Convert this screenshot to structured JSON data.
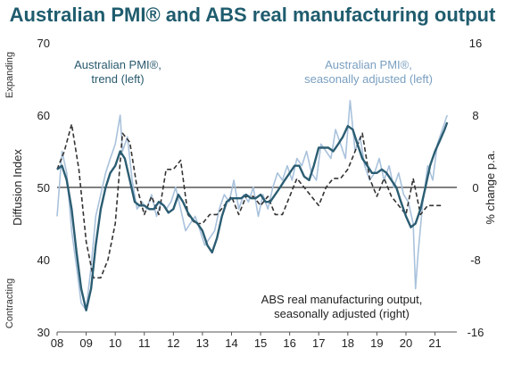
{
  "chart_data": {
    "type": "line",
    "title": "Australian PMI® and ABS real manufacturing output",
    "ylabel_left": "Diffusion Index",
    "ylabel_right": "% change p.a.",
    "side_label_top": "Expanding",
    "side_label_bottom": "Contracting",
    "x_ticks": [
      "08",
      "09",
      "10",
      "11",
      "12",
      "13",
      "14",
      "15",
      "16",
      "17",
      "18",
      "19",
      "20",
      "21"
    ],
    "xlim": [
      2008.0,
      2021.75
    ],
    "ylim_left": [
      30,
      70
    ],
    "ylim_right": [
      -16,
      16
    ],
    "yticks_left": [
      "30",
      "40",
      "50",
      "60",
      "70"
    ],
    "yticks_right": [
      "-16",
      "-8",
      "0",
      "8",
      "16"
    ],
    "reference_line_left": 50,
    "annotations": {
      "trend": [
        "Australian PMI®,",
        "trend (left)"
      ],
      "seasonal": [
        "Australian PMI®,",
        "seasonally adjusted (left)"
      ],
      "abs": [
        "ABS real manufacturing output,",
        "seasonally adjusted (right)"
      ]
    },
    "colors": {
      "seasonal": "#a9c2dc",
      "trend": "#2b5d72",
      "abs": "#333333",
      "title": "#1f5c6e"
    },
    "series": [
      {
        "name": "Australian PMI®, seasonally adjusted (left)",
        "axis": "left",
        "style": "solid-light",
        "x": [
          2008.0,
          2008.17,
          2008.33,
          2008.5,
          2008.67,
          2008.83,
          2009.0,
          2009.08,
          2009.17,
          2009.33,
          2009.5,
          2009.67,
          2009.83,
          2010.0,
          2010.17,
          2010.25,
          2010.42,
          2010.58,
          2010.75,
          2010.92,
          2011.08,
          2011.25,
          2011.42,
          2011.58,
          2011.75,
          2011.92,
          2012.08,
          2012.25,
          2012.42,
          2012.58,
          2012.75,
          2012.92,
          2013.08,
          2013.25,
          2013.42,
          2013.58,
          2013.75,
          2013.92,
          2014.08,
          2014.25,
          2014.42,
          2014.58,
          2014.75,
          2014.92,
          2015.08,
          2015.25,
          2015.42,
          2015.58,
          2015.75,
          2015.92,
          2016.08,
          2016.25,
          2016.42,
          2016.58,
          2016.75,
          2016.92,
          2017.08,
          2017.25,
          2017.42,
          2017.58,
          2017.75,
          2017.92,
          2018.0,
          2018.08,
          2018.25,
          2018.42,
          2018.58,
          2018.75,
          2018.92,
          2019.08,
          2019.25,
          2019.42,
          2019.58,
          2019.75,
          2019.92,
          2020.08,
          2020.25,
          2020.33,
          2020.42,
          2020.58,
          2020.75,
          2020.92,
          2021.08,
          2021.25,
          2021.42
        ],
        "values": [
          46,
          55,
          52,
          44,
          39,
          34,
          33,
          36,
          39,
          46,
          49,
          52,
          54,
          56,
          60,
          55,
          57,
          51,
          47,
          48,
          47,
          49,
          46,
          48,
          47,
          48,
          50,
          47,
          44,
          45,
          46,
          44,
          42,
          43,
          44,
          47,
          49,
          48,
          51,
          47,
          49,
          48,
          50,
          46,
          49,
          47,
          50,
          52,
          51,
          53,
          51,
          54,
          53,
          55,
          52,
          51,
          56,
          55,
          54,
          58,
          56,
          54,
          58,
          62,
          55,
          57,
          53,
          51,
          52,
          54,
          51,
          53,
          50,
          52,
          49,
          48,
          45,
          36,
          41,
          48,
          53,
          51,
          56,
          58,
          60
        ]
      },
      {
        "name": "Australian PMI®, trend (left)",
        "axis": "left",
        "style": "solid-dark",
        "x": [
          2008.0,
          2008.17,
          2008.33,
          2008.5,
          2008.67,
          2008.83,
          2009.0,
          2009.17,
          2009.33,
          2009.5,
          2009.67,
          2009.83,
          2010.0,
          2010.17,
          2010.33,
          2010.5,
          2010.67,
          2010.83,
          2011.0,
          2011.17,
          2011.33,
          2011.5,
          2011.67,
          2011.83,
          2012.0,
          2012.17,
          2012.33,
          2012.5,
          2012.67,
          2012.83,
          2013.0,
          2013.17,
          2013.33,
          2013.5,
          2013.67,
          2013.83,
          2014.0,
          2014.17,
          2014.33,
          2014.5,
          2014.67,
          2014.83,
          2015.0,
          2015.17,
          2015.33,
          2015.5,
          2015.67,
          2015.83,
          2016.0,
          2016.17,
          2016.33,
          2016.5,
          2016.67,
          2016.83,
          2017.0,
          2017.17,
          2017.33,
          2017.5,
          2017.67,
          2017.83,
          2018.0,
          2018.17,
          2018.33,
          2018.5,
          2018.67,
          2018.83,
          2019.0,
          2019.17,
          2019.33,
          2019.5,
          2019.67,
          2019.83,
          2020.0,
          2020.17,
          2020.33,
          2020.5,
          2020.67,
          2020.83,
          2021.0,
          2021.17,
          2021.33,
          2021.42
        ],
        "values": [
          52.5,
          53,
          51,
          47,
          41,
          36,
          33,
          36,
          42,
          47,
          50,
          52,
          53,
          55,
          54,
          51,
          48,
          47.5,
          47.5,
          47,
          47,
          48,
          47.5,
          46.5,
          47,
          49,
          48,
          46.5,
          45.5,
          45,
          44,
          42,
          41,
          43,
          46,
          48,
          48.5,
          48.5,
          48.5,
          49,
          48.5,
          48.5,
          49,
          48,
          48,
          49,
          50,
          51,
          52,
          53,
          53,
          51.5,
          51,
          53,
          55.5,
          55.5,
          55.5,
          55,
          56,
          57,
          58.5,
          58,
          56,
          54,
          53,
          52,
          52,
          52.5,
          52,
          51,
          50,
          48,
          46,
          44.5,
          45,
          47,
          50,
          53,
          55,
          56.5,
          58,
          59
        ]
      },
      {
        "name": "ABS real manufacturing output, seasonally adjusted (right)",
        "axis": "right",
        "style": "dashed",
        "x": [
          2008.0,
          2008.25,
          2008.5,
          2008.75,
          2009.0,
          2009.25,
          2009.5,
          2009.75,
          2010.0,
          2010.25,
          2010.5,
          2010.75,
          2011.0,
          2011.25,
          2011.5,
          2011.75,
          2012.0,
          2012.25,
          2012.5,
          2012.75,
          2013.0,
          2013.25,
          2013.5,
          2013.75,
          2014.0,
          2014.25,
          2014.5,
          2014.75,
          2015.0,
          2015.25,
          2015.5,
          2015.75,
          2016.0,
          2016.25,
          2016.5,
          2016.75,
          2017.0,
          2017.25,
          2017.5,
          2017.75,
          2018.0,
          2018.25,
          2018.5,
          2018.75,
          2019.0,
          2019.25,
          2019.5,
          2019.75,
          2020.0,
          2020.25,
          2020.5,
          2020.75,
          2021.0,
          2021.25
        ],
        "values": [
          2,
          4,
          7,
          2,
          -6,
          -10,
          -10,
          -8,
          -4,
          6,
          5,
          0,
          -3,
          -1,
          -3,
          2,
          2,
          3,
          -3,
          -4,
          -4,
          -3,
          -3,
          -2,
          -1,
          -3,
          -1,
          -1,
          -2,
          -1,
          -3,
          -3,
          -1,
          1,
          0,
          -1,
          -2,
          0,
          1,
          1,
          2,
          4,
          6,
          1,
          -1,
          1,
          -1,
          -2,
          -3,
          1,
          -3,
          -2,
          -2,
          -2
        ]
      }
    ]
  }
}
